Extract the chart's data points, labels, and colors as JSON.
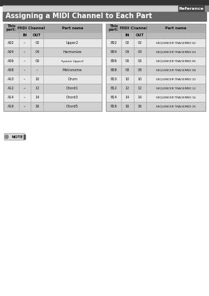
{
  "title": "Assigning a MIDI Channel to Each Part",
  "ref_text": "Reference",
  "page_bg": "#ffffff",
  "top_bar_bg": "#cccccc",
  "top_bar_stripe": "#e8e8e8",
  "title_bar_bg": "#666666",
  "title_color": "#ffffff",
  "table_header_bg": "#aaaaaa",
  "table_subheader_bg": "#bbbbbb",
  "row_light_bg": "#e8e8e8",
  "row_dark_bg": "#d0d0d0",
  "border_color": "#999999",
  "text_dark": "#111111",
  "text_header": "#111111",
  "left_table": {
    "rows": [
      [
        "A02",
        "--",
        "02",
        "Upper2"
      ],
      [
        "A04",
        "--",
        "04",
        "Harmonize"
      ],
      [
        "A06",
        "--",
        "06",
        "System Upper2"
      ],
      [
        "A08",
        "--",
        "--",
        "Metronome"
      ],
      [
        "A10",
        "--",
        "10",
        "Drum"
      ],
      [
        "A12",
        "--",
        "12",
        "Chord1"
      ],
      [
        "A14",
        "--",
        "14",
        "Chord3"
      ],
      [
        "A16",
        "--",
        "16",
        "Chord5"
      ]
    ]
  },
  "right_table": {
    "rows": [
      [
        "B02",
        "02",
        "02",
        "SEQUENCER TRACK/MIDI 02"
      ],
      [
        "B04",
        "04",
        "04",
        "SEQUENCER TRACK/MIDI 04"
      ],
      [
        "B06",
        "06",
        "06",
        "SEQUENCER TRACK/MIDI 06"
      ],
      [
        "B08",
        "08",
        "08",
        "SEQUENCER TRACK/MIDI 08"
      ],
      [
        "B10",
        "10",
        "10",
        "SEQUENCER TRACK/MIDI 10"
      ],
      [
        "B12",
        "12",
        "12",
        "SEQUENCER TRACK/MIDI 12"
      ],
      [
        "B14",
        "14",
        "14",
        "SEQUENCER TRACK/MIDI 14"
      ],
      [
        "B16",
        "16",
        "16",
        "SEQUENCER TRACK/MIDI 16"
      ]
    ]
  }
}
